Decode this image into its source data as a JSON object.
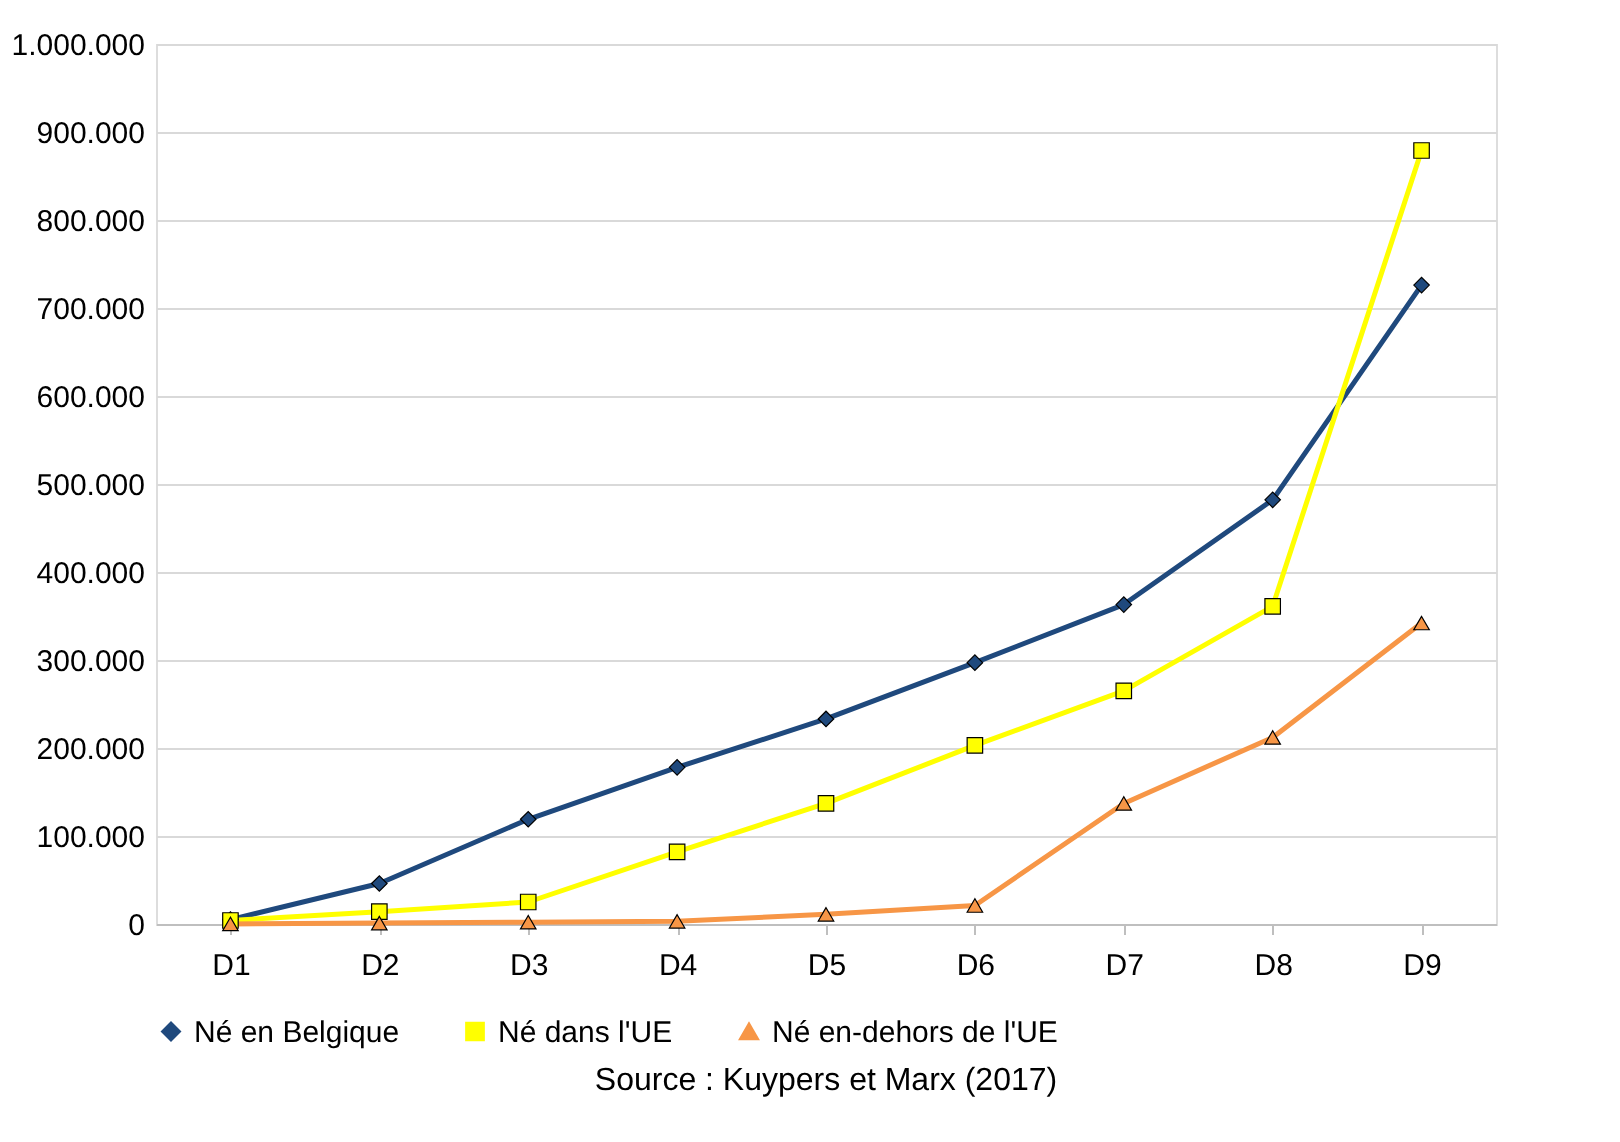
{
  "chart_data": {
    "type": "line",
    "categories": [
      "D1",
      "D2",
      "D3",
      "D4",
      "D5",
      "D6",
      "D7",
      "D8",
      "D9"
    ],
    "series": [
      {
        "name": "Né en Belgique",
        "color": "#1f497d",
        "marker": "diamond",
        "values": [
          5000,
          46000,
          119000,
          178000,
          233000,
          297000,
          363000,
          482000,
          726000
        ]
      },
      {
        "name": "Né dans l'UE",
        "color": "#ffff00",
        "marker": "square",
        "values": [
          4000,
          14000,
          25000,
          82000,
          137000,
          203000,
          265000,
          361000,
          879000
        ]
      },
      {
        "name": "Né en-dehors de l'UE",
        "color": "#f79646",
        "marker": "triangle",
        "values": [
          0,
          1000,
          2000,
          3000,
          11000,
          21000,
          137000,
          212000,
          342000
        ]
      }
    ],
    "ylim": [
      0,
      1000000
    ],
    "yticks": [
      {
        "value": 0,
        "label": "0"
      },
      {
        "value": 100000,
        "label": "100.000"
      },
      {
        "value": 200000,
        "label": "200.000"
      },
      {
        "value": 300000,
        "label": "300.000"
      },
      {
        "value": 400000,
        "label": "400.000"
      },
      {
        "value": 500000,
        "label": "500.000"
      },
      {
        "value": 600000,
        "label": "600.000"
      },
      {
        "value": 700000,
        "label": "700.000"
      },
      {
        "value": 800000,
        "label": "800.000"
      },
      {
        "value": 900000,
        "label": "900.000"
      },
      {
        "value": 1000000,
        "label": "1.000.000"
      }
    ],
    "grid": "y",
    "legend": "bottom",
    "line_style": "solid",
    "annotations": [
      "Source : Kuypers et Marx (2017)"
    ]
  }
}
